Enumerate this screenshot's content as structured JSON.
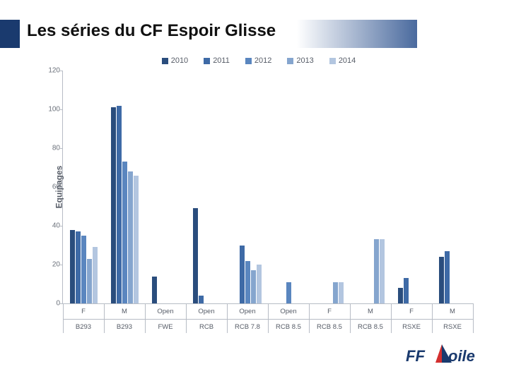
{
  "title": "Les séries du CF Espoir Glisse",
  "chart": {
    "type": "bar",
    "ylabel": "Equipages",
    "ymax": 120,
    "ytick_step": 20,
    "axis_color": "#b7bcc5",
    "label_color": "#555b66",
    "series": [
      {
        "name": "2010",
        "color": "#2a4d7d"
      },
      {
        "name": "2011",
        "color": "#3e6aa6"
      },
      {
        "name": "2012",
        "color": "#5a86bf"
      },
      {
        "name": "2013",
        "color": "#85a5ce"
      },
      {
        "name": "2014",
        "color": "#b3c6e0"
      }
    ],
    "groups": [
      {
        "cat": "F",
        "sub": "B293",
        "values": [
          38,
          37,
          35,
          23,
          29
        ]
      },
      {
        "cat": "M",
        "sub": "B293",
        "values": [
          101,
          102,
          73,
          68,
          66
        ]
      },
      {
        "cat": "Open",
        "sub": "FWE",
        "values": [
          14,
          null,
          null,
          null,
          null
        ]
      },
      {
        "cat": "Open",
        "sub": "RCB",
        "values": [
          49,
          4,
          null,
          null,
          null
        ]
      },
      {
        "cat": "Open",
        "sub": "RCB 7.8",
        "values": [
          null,
          30,
          22,
          17,
          20
        ]
      },
      {
        "cat": "Open",
        "sub": "RCB 8.5",
        "values": [
          null,
          null,
          11,
          null,
          null
        ]
      },
      {
        "cat": "F",
        "sub": "RCB 8.5",
        "values": [
          null,
          null,
          null,
          11,
          11
        ]
      },
      {
        "cat": "M",
        "sub": "RCB 8.5",
        "values": [
          null,
          null,
          null,
          33,
          33
        ]
      },
      {
        "cat": "F",
        "sub": "RSXE",
        "values": [
          8,
          13,
          null,
          null,
          null
        ]
      },
      {
        "cat": "M",
        "sub": "RSXE",
        "values": [
          24,
          27,
          null,
          null,
          null
        ]
      }
    ]
  },
  "logo": {
    "text_left": "FF",
    "text_right": "oile"
  }
}
